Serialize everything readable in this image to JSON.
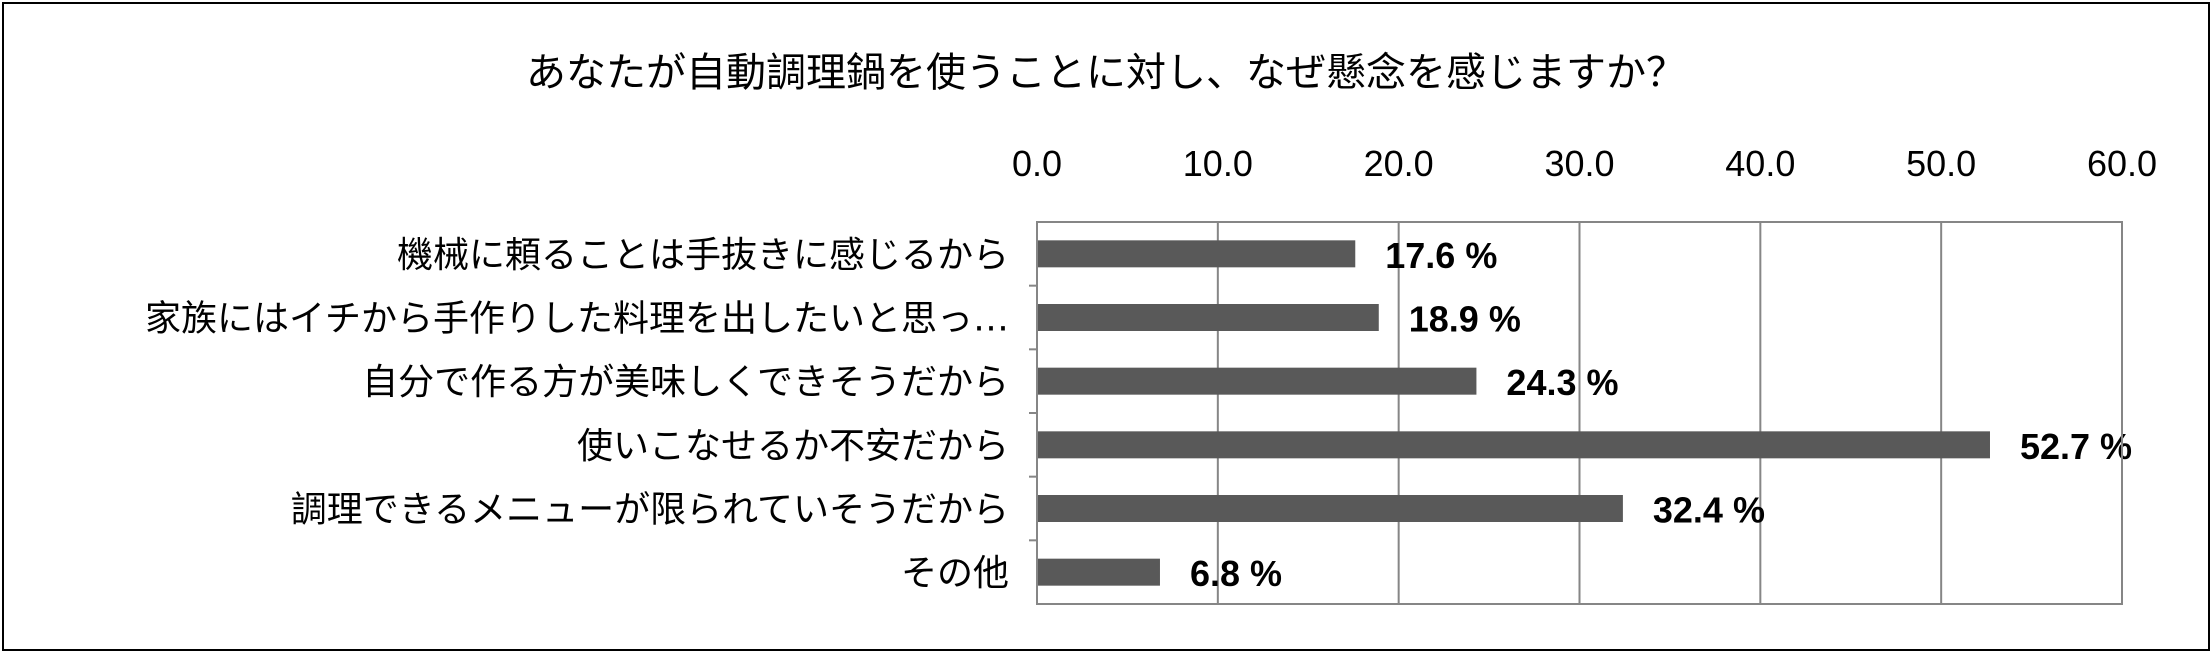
{
  "chart_data": {
    "type": "bar",
    "orientation": "horizontal",
    "title": "あなたが自動調理鍋を使うことに対し、なぜ懸念を感じますか？",
    "xlabel": "",
    "ylabel": "",
    "xlim": [
      0,
      60
    ],
    "x_ticks": [
      "0.0",
      "10.0",
      "20.0",
      "30.0",
      "40.0",
      "50.0",
      "60.0"
    ],
    "x_axis_position": "top",
    "grid": true,
    "legend": "none",
    "bar_color": "#595959",
    "categories": [
      "機械に頼ることは手抜きに感じるから",
      "家族にはイチから手作りした料理を出したいと思っ…",
      "自分で作る方が美味しくできそうだから",
      "使いこなせるか不安だから",
      "調理できるメニューが限られていそうだから",
      "その他"
    ],
    "values": [
      17.6,
      18.9,
      24.3,
      52.7,
      32.4,
      6.8
    ],
    "value_labels": [
      "17.6 %",
      "18.9 %",
      "24.3 %",
      "52.7 %",
      "32.4 %",
      "6.8 %"
    ]
  }
}
